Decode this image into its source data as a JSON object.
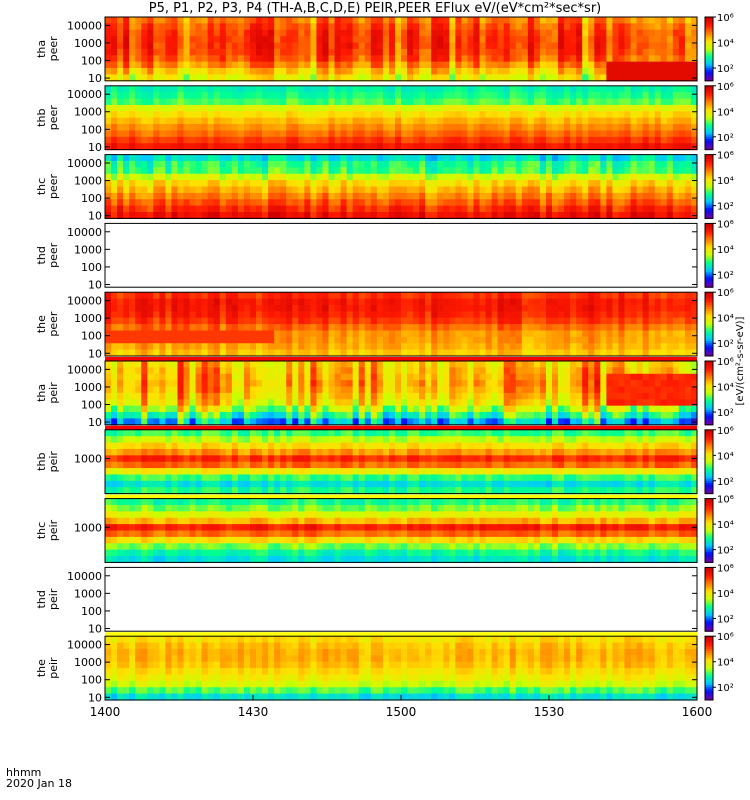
{
  "chart_data": {
    "type": "heatmap",
    "title": "P5, P1, P2, P3, P4 (TH-A,B,C,D,E) PEIR,PEER EFlux eV/(eV*cm²*sec*sr)",
    "x_axis": {
      "unit_label": "hhmm",
      "date_label": "2020 Jan 18",
      "ticks": [
        "1400",
        "1430",
        "1500",
        "1530",
        "1600"
      ],
      "tick_values_minutes": [
        0,
        30,
        60,
        90,
        120
      ]
    },
    "colorbar": {
      "scale": "log",
      "range": [
        10,
        1000000
      ],
      "tick_labels": [
        "10²",
        "10⁴",
        "10⁶"
      ],
      "tick_values": [
        100,
        10000,
        1000000
      ],
      "colors": [
        "#6a00a8",
        "#0010ff",
        "#00c8ff",
        "#00ff90",
        "#c8ff00",
        "#ffe000",
        "#ff8000",
        "#ff1a00",
        "#d00000"
      ],
      "label": "[eV/(cm²-s-sr-eV)]"
    },
    "panels": [
      {
        "name": "tha peer",
        "probe": "tha",
        "species": "peer",
        "ylabels": [
          "10000",
          "1000",
          "100",
          "10"
        ],
        "ylim": [
          7,
          30000
        ],
        "empty": false
      },
      {
        "name": "thb peer",
        "probe": "thb",
        "species": "peer",
        "ylabels": [
          "10000",
          "1000",
          "100",
          "10"
        ],
        "ylim": [
          7,
          30000
        ],
        "empty": false
      },
      {
        "name": "thc peer",
        "probe": "thc",
        "species": "peer",
        "ylabels": [
          "10000",
          "1000",
          "100",
          "10"
        ],
        "ylim": [
          7,
          30000
        ],
        "empty": false
      },
      {
        "name": "thd peer",
        "probe": "thd",
        "species": "peer",
        "ylabels": [
          "10000",
          "1000",
          "100",
          "10"
        ],
        "ylim": [
          7,
          30000
        ],
        "empty": true
      },
      {
        "name": "the peer",
        "probe": "the",
        "species": "peer",
        "ylabels": [
          "10000",
          "1000",
          "100",
          "10"
        ],
        "ylim": [
          7,
          30000
        ],
        "empty": false
      },
      {
        "name": "tha peir",
        "probe": "tha",
        "species": "peir",
        "ylabels": [
          "10000",
          "1000",
          "100",
          "10"
        ],
        "ylim": [
          7,
          30000
        ],
        "empty": false
      },
      {
        "name": "thb peir",
        "probe": "thb",
        "species": "peir",
        "ylabels": [
          "1000"
        ],
        "ylim": [
          7,
          30000
        ],
        "empty": false
      },
      {
        "name": "thc peir",
        "probe": "thc",
        "species": "peir",
        "ylabels": [
          "1000"
        ],
        "ylim": [
          7,
          30000
        ],
        "empty": false
      },
      {
        "name": "thd peir",
        "probe": "thd",
        "species": "peir",
        "ylabels": [
          "10000",
          "1000",
          "100",
          "10"
        ],
        "ylim": [
          7,
          30000
        ],
        "empty": true
      },
      {
        "name": "the peir",
        "probe": "the",
        "species": "peir",
        "ylabels": [
          "10000",
          "1000",
          "100",
          "10"
        ],
        "ylim": [
          7,
          30000
        ],
        "empty": false
      }
    ]
  }
}
